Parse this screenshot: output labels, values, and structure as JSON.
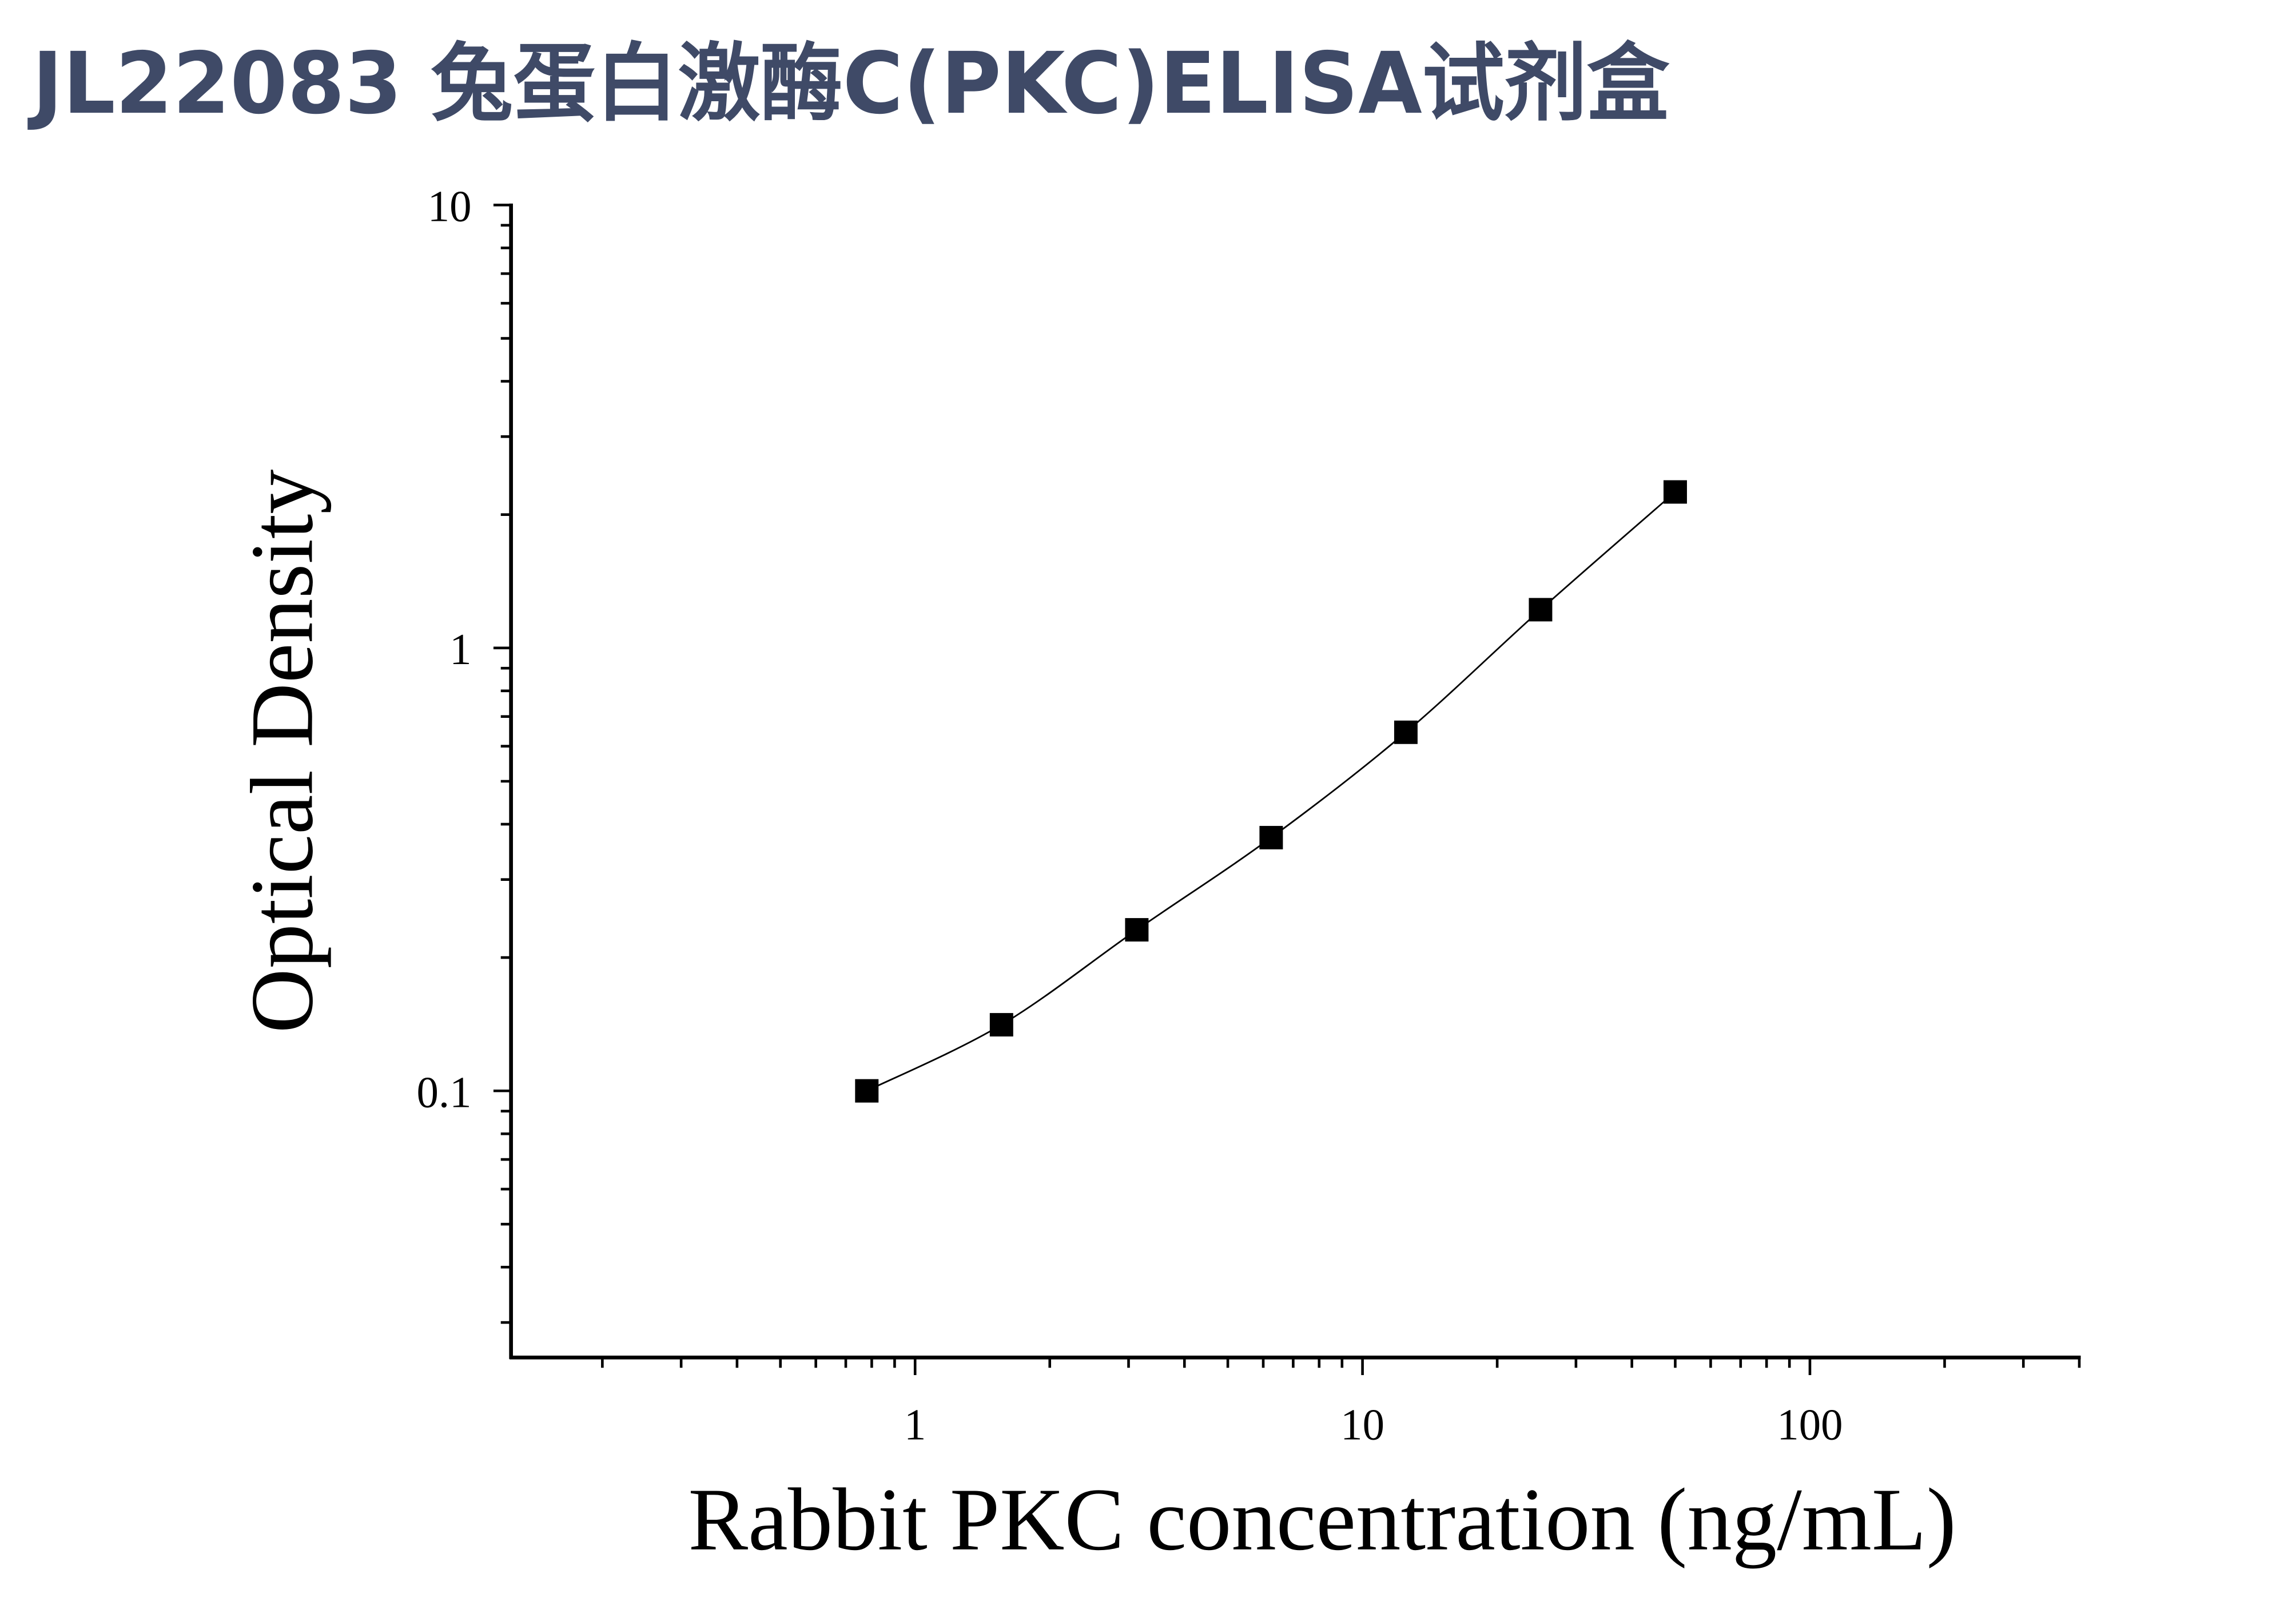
{
  "chart_data": {
    "type": "scatter",
    "title": "JL22083 兔蛋白激酶C(PKC)ELISA试剂盒",
    "xlabel": "Rabbit PKC concentration (ng/mL)",
    "ylabel": "Optical Density",
    "xscale": "log",
    "yscale": "log",
    "xlim": [
      0.125,
      400
    ],
    "ylim": [
      0.025,
      10
    ],
    "xticks": [
      {
        "value": 1,
        "label": "1"
      },
      {
        "value": 10,
        "label": "10"
      },
      {
        "value": 100,
        "label": "100"
      }
    ],
    "yticks": [
      {
        "value": 0.1,
        "label": "0.1"
      },
      {
        "value": 1,
        "label": "1"
      },
      {
        "value": 10,
        "label": "10"
      }
    ],
    "series": [
      {
        "x": [
          0.78,
          1.56,
          3.13,
          6.25,
          12.5,
          25,
          50
        ],
        "y": [
          0.1,
          0.141,
          0.231,
          0.373,
          0.645,
          1.22,
          2.25
        ],
        "marker": "square",
        "line": "smooth-curve"
      }
    ],
    "grid": false,
    "legend": "none"
  },
  "colors": {
    "title": "#3f4a67",
    "ink": "#000000",
    "background": "#ffffff"
  }
}
